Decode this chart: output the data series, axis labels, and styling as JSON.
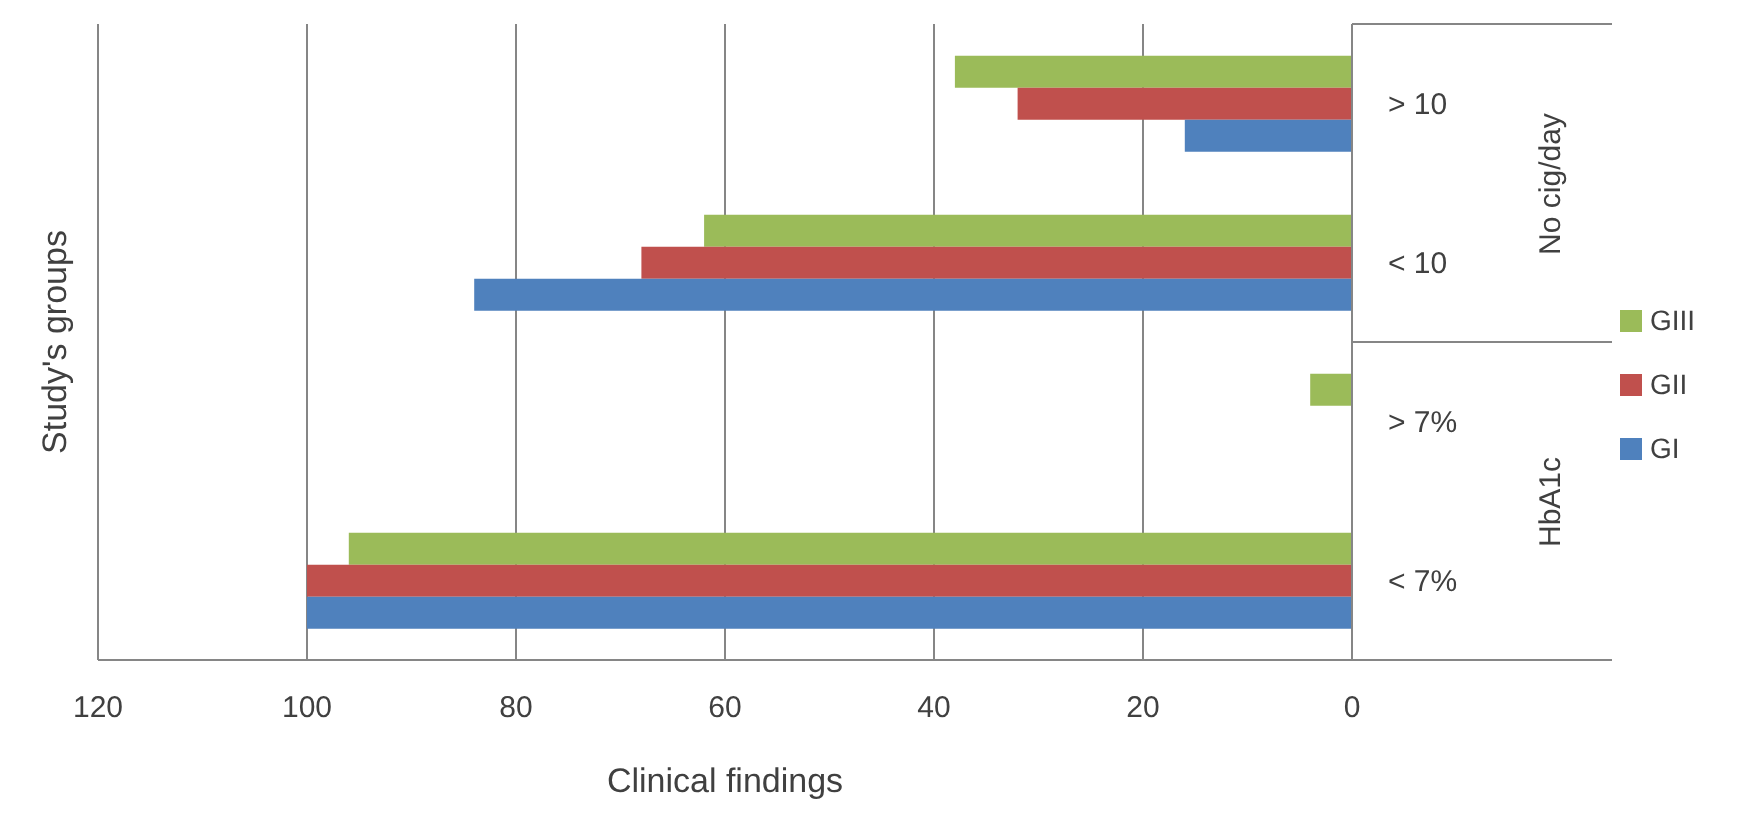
{
  "chart_data": {
    "type": "bar",
    "orientation": "horizontal",
    "xlabel": "Clinical findings",
    "ylabel": "Study's groups",
    "categories": [
      "> 10",
      "< 10",
      "> 7%",
      "< 7%"
    ],
    "series": [
      {
        "name": "GIII",
        "color": "#9bbb59",
        "values": [
          38,
          62,
          4,
          96
        ]
      },
      {
        "name": "GII",
        "color": "#c0504d",
        "values": [
          32,
          68,
          0,
          100
        ]
      },
      {
        "name": "GI",
        "color": "#4f81bd",
        "values": [
          16,
          84,
          0,
          100
        ]
      }
    ],
    "xlim": [
      120,
      0
    ],
    "xticks": [
      120,
      100,
      80,
      60,
      40,
      20,
      0
    ],
    "grid": "x",
    "legend": "right",
    "annotations": [
      "No cig/day",
      "HbA1c"
    ]
  }
}
